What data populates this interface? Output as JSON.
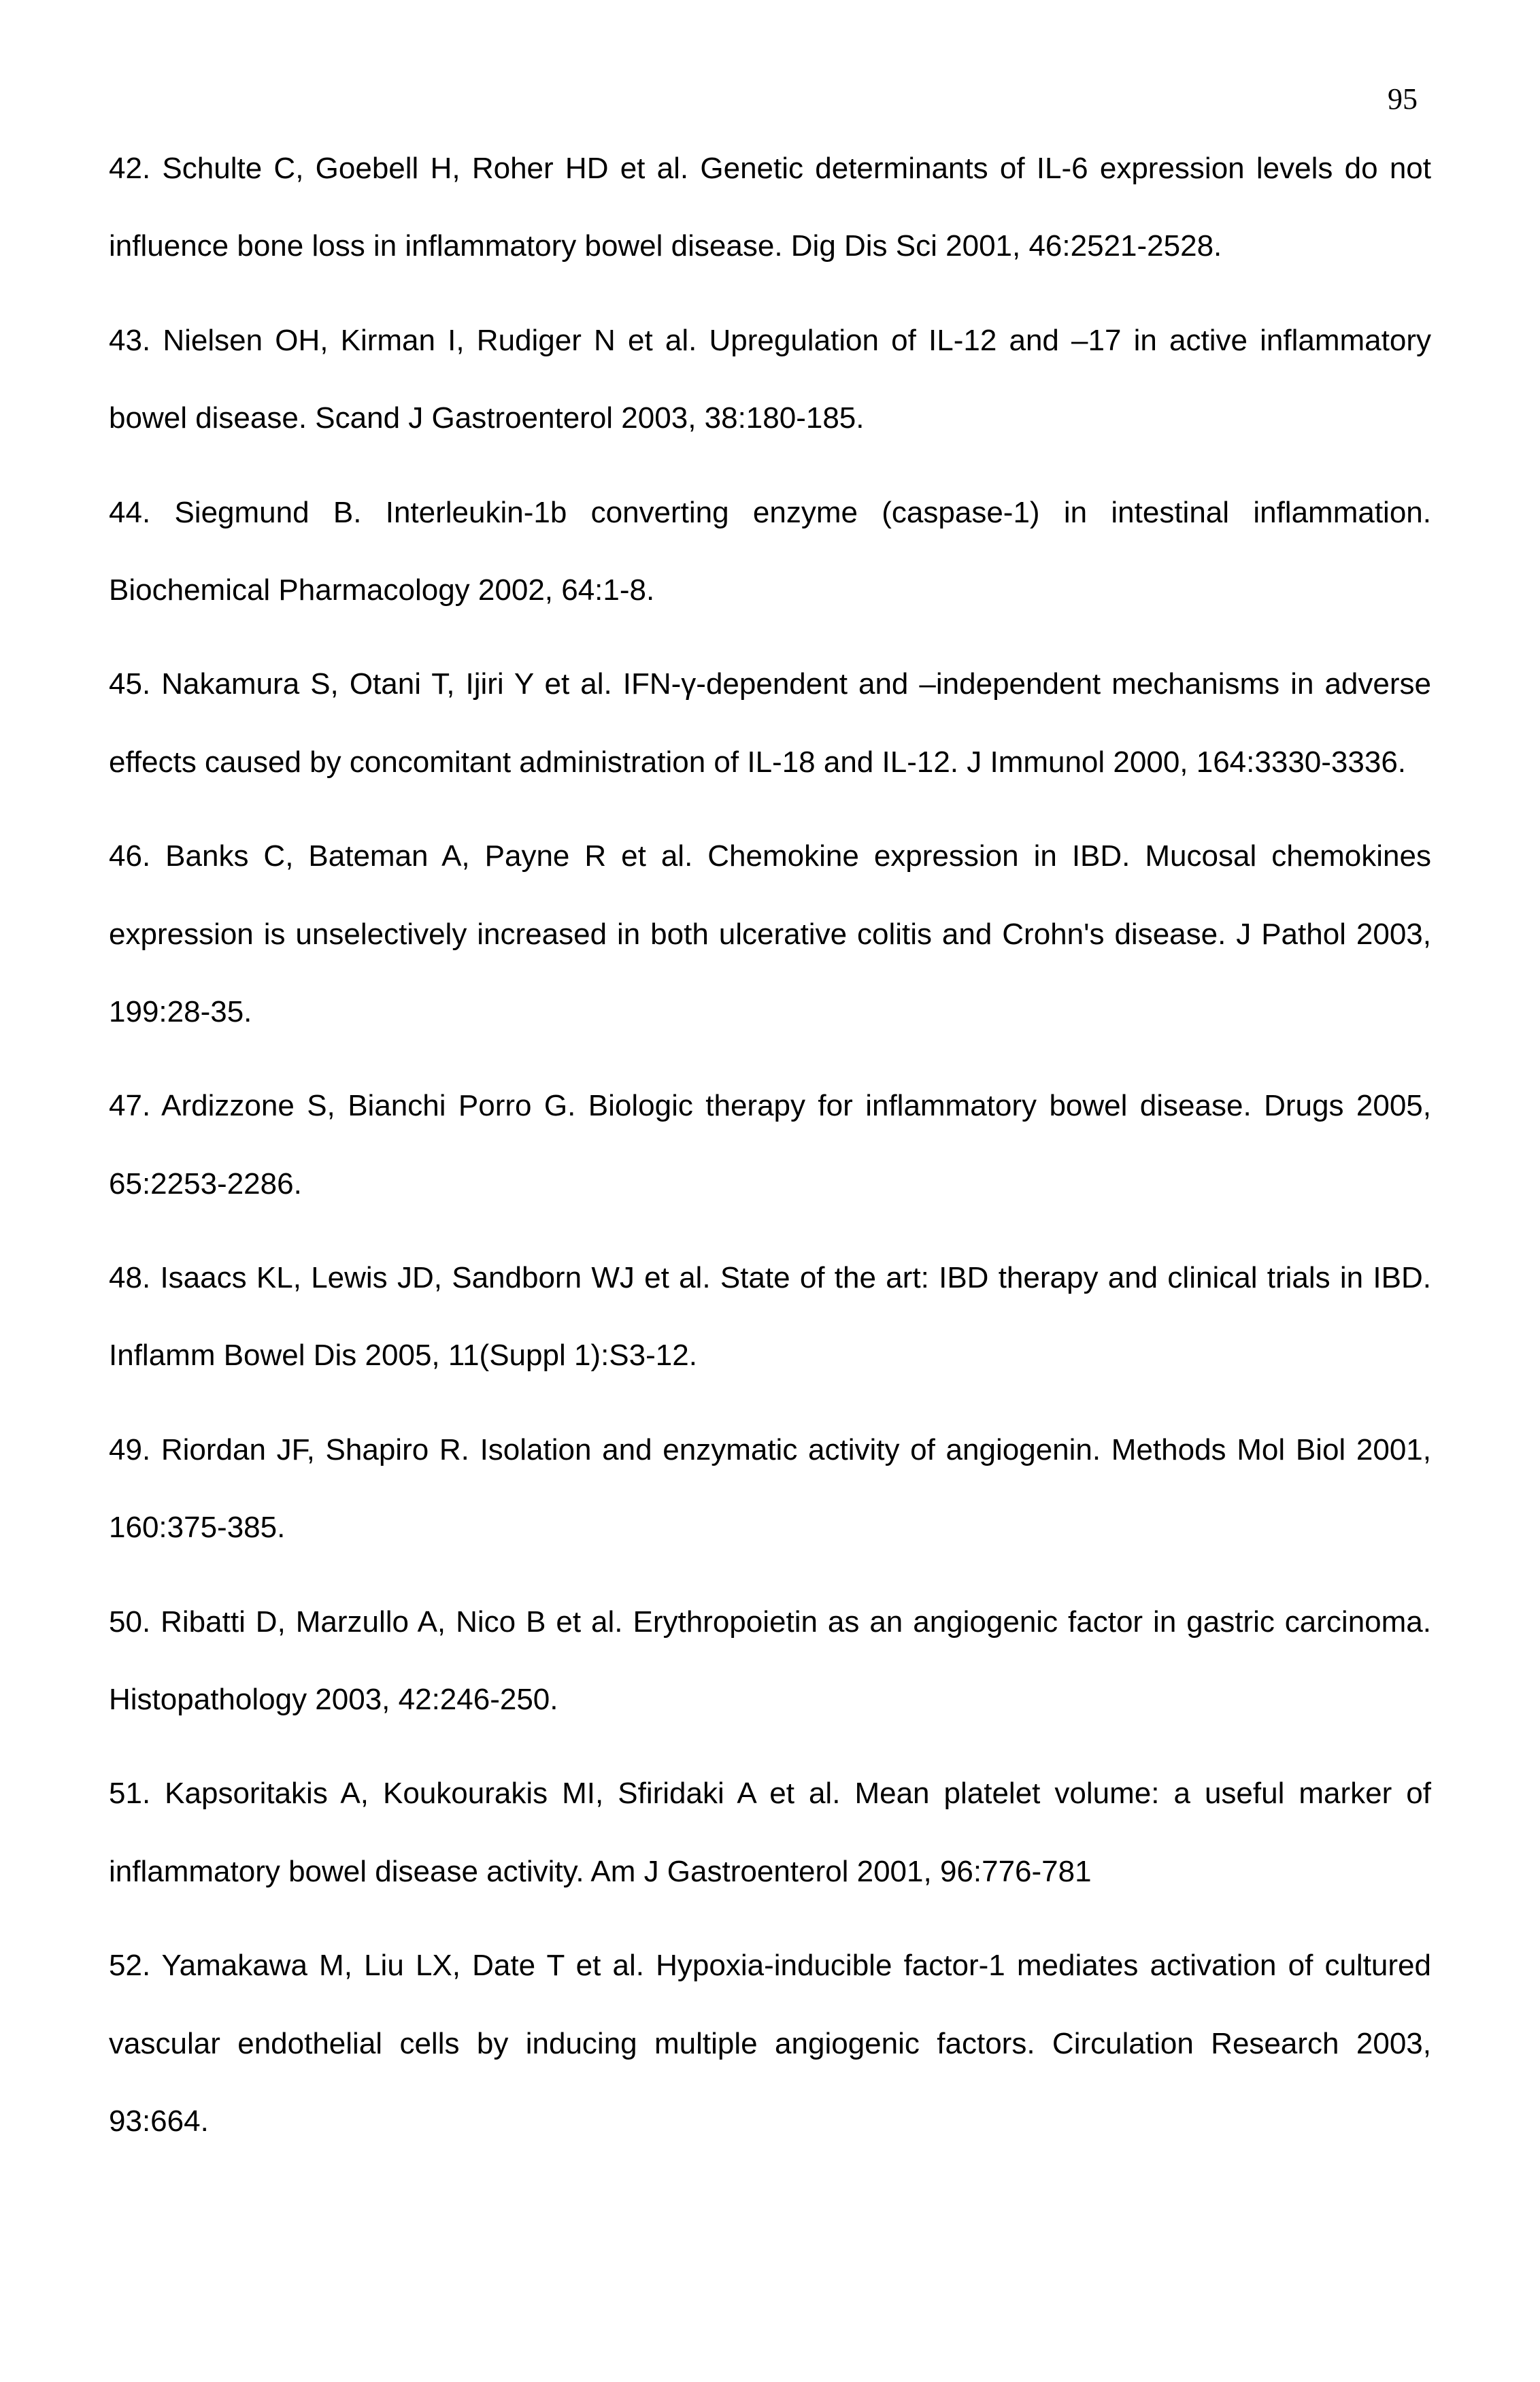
{
  "page_number": "95",
  "references": [
    {
      "text": "42. Schulte C, Goebell H, Roher HD et al. Genetic determinants of IL-6 expression levels do not influence bone loss in inflammatory bowel disease. Dig Dis Sci 2001, 46:2521-2528."
    },
    {
      "text": "43. Nielsen OH, Kirman I, Rudiger N et al. Upregulation of IL-12 and –17 in active inflammatory bowel disease. Scand J Gastroenterol 2003, 38:180-185."
    },
    {
      "text": "44. Siegmund B. Interleukin-1b converting enzyme (caspase-1) in intestinal inflammation. Biochemical Pharmacology 2002, 64:1-8."
    },
    {
      "text": "45. Nakamura S, Otani T, Ijiri Y et al. IFN-γ-dependent and –independent mechanisms in adverse effects caused by concomitant administration of IL-18 and IL-12. J Immunol 2000, 164:3330-3336."
    },
    {
      "text": "46. Banks C, Bateman A, Payne R et al. Chemokine expression in IBD. Mucosal chemokines expression is unselectively increased in both ulcerative colitis and Crohn's disease. J Pathol 2003, 199:28-35."
    },
    {
      "text": "47. Ardizzone S, Bianchi Porro G. Biologic therapy for inflammatory bowel disease. Drugs 2005, 65:2253-2286."
    },
    {
      "text": "48. Isaacs KL, Lewis JD, Sandborn WJ et al. State of the art: IBD therapy and clinical trials in IBD. Inflamm Bowel Dis 2005, 11(Suppl 1):S3-12."
    },
    {
      "text": "49. Riordan JF, Shapiro R. Isolation and enzymatic activity of angiogenin. Methods Mol Biol 2001, 160:375-385."
    },
    {
      "text": "50. Ribatti D, Marzullo A, Nico B et al. Erythropoietin as an angiogenic factor in gastric carcinoma. Histopathology 2003, 42:246-250."
    },
    {
      "text": "51. Kapsoritakis A, Koukourakis MI, Sfiridaki A et al. Mean platelet volume: a useful marker of inflammatory bowel disease activity. Am J Gastroenterol 2001, 96:776-781"
    },
    {
      "text": "52. Yamakawa M, Liu LX, Date T et al. Hypoxia-inducible factor-1 mediates activation of cultured vascular endothelial cells by inducing multiple angiogenic factors. Circulation Research 2003, 93:664."
    }
  ]
}
